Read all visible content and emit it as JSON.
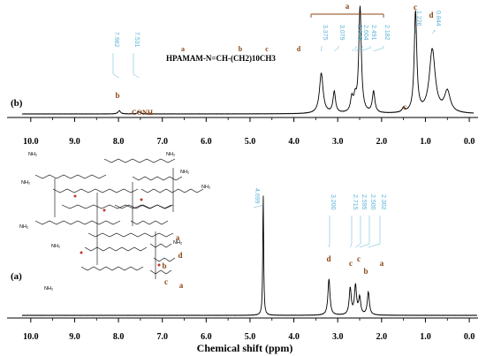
{
  "chart_data": [
    {
      "type": "line",
      "panel": "(b)",
      "xlabel": "",
      "xlim": [
        10.5,
        -0.2
      ],
      "x_ticks": [
        "10.0",
        "9.0",
        "8.0",
        "7.0",
        "6.0",
        "5.0",
        "4.0",
        "3.0",
        "2.0",
        "1.0",
        "0.0"
      ],
      "formula": {
        "text": "HPAMAM-N=CH-(CH2)10CH3",
        "letters": [
          "a",
          "b",
          "c",
          "d"
        ]
      },
      "ppm_labels": [
        "7.982",
        "7.531",
        "3.375",
        "3.079",
        "2.679",
        "2.604",
        "2.491",
        "2.182",
        "1.226",
        "0.844"
      ],
      "peak_letters": [
        {
          "letter": "b",
          "ppm": 7.982
        },
        {
          "letter": "CONH",
          "ppm": 7.531
        },
        {
          "letter": "a",
          "ppm": 2.85
        },
        {
          "letter": "c",
          "ppm": 1.5
        },
        {
          "letter": "c",
          "ppm": 1.226
        },
        {
          "letter": "d",
          "ppm": 0.844
        }
      ],
      "peaks": [
        {
          "ppm": 7.982,
          "height": 0.03
        },
        {
          "ppm": 7.531,
          "height": 0.02
        },
        {
          "ppm": 3.375,
          "height": 0.38
        },
        {
          "ppm": 3.079,
          "height": 0.2
        },
        {
          "ppm": 2.679,
          "height": 0.13
        },
        {
          "ppm": 2.604,
          "height": 0.12
        },
        {
          "ppm": 2.491,
          "height": 1.0
        },
        {
          "ppm": 2.182,
          "height": 0.2
        },
        {
          "ppm": 1.5,
          "height": 0.04
        },
        {
          "ppm": 1.226,
          "height": 0.95
        },
        {
          "ppm": 0.844,
          "height": 0.6
        },
        {
          "ppm": 0.5,
          "height": 0.2
        }
      ]
    },
    {
      "type": "line",
      "panel": "(a)",
      "xlabel": "Chemical shift (ppm)",
      "xlim": [
        10.5,
        -0.2
      ],
      "x_ticks": [
        "10.0",
        "9.0",
        "8.0",
        "7.0",
        "6.0",
        "5.0",
        "4.0",
        "3.0",
        "2.0",
        "1.0",
        "0.0"
      ],
      "ppm_labels": [
        "4.699",
        "3.200",
        "2.715",
        "2.595",
        "2.500",
        "2.302"
      ],
      "peak_letters": [
        {
          "letter": "d",
          "ppm": 3.2
        },
        {
          "letter": "c",
          "ppm": 2.715
        },
        {
          "letter": "c",
          "ppm": 2.595
        },
        {
          "letter": "b",
          "ppm": 2.5
        },
        {
          "letter": "a",
          "ppm": 2.302
        }
      ],
      "structure_letters": [
        "a",
        "d",
        "b",
        "c",
        "a"
      ],
      "peaks": [
        {
          "ppm": 4.699,
          "height": 1.0
        },
        {
          "ppm": 3.2,
          "height": 0.3
        },
        {
          "ppm": 2.715,
          "height": 0.22
        },
        {
          "ppm": 2.595,
          "height": 0.24
        },
        {
          "ppm": 2.5,
          "height": 0.14
        },
        {
          "ppm": 2.302,
          "height": 0.19
        }
      ]
    }
  ]
}
